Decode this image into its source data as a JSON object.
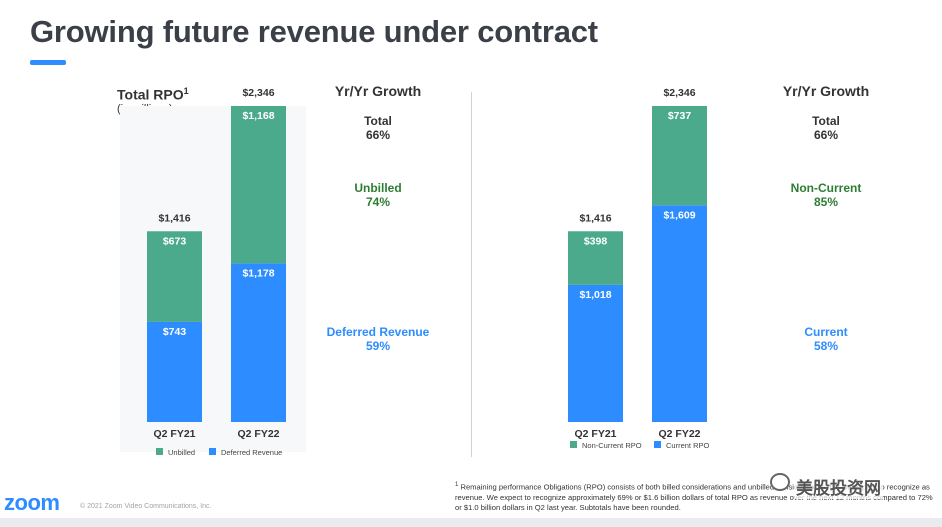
{
  "page": {
    "title": "Growing future revenue under contract",
    "rpo_title": "Total RPO",
    "rpo_sup": "1",
    "rpo_subtitle": "(in millions)",
    "logo": "zoom",
    "copyright": "© 2021 Zoom Video Communications, Inc.",
    "footnote_sup": "1",
    "footnote": "Remaining performance Obligations (RPO) consists of both billed considerations and unbilled considerations that we expect to recognize as revenue. We expect to recognize approximately 69% or $1.6 billion dollars of total RPO as revenue over the next 12 months compared to 72% or $1.0 billion dollars in Q2 last year. Subtotals have been rounded.",
    "watermark": "美股投资网"
  },
  "left_growth": {
    "header": "Yr/Yr Growth",
    "total_label": "Total",
    "total_value": "66%",
    "top_label": "Unbilled",
    "top_value": "74%",
    "bottom_label": "Deferred Revenue",
    "bottom_value": "59%"
  },
  "right_growth": {
    "header": "Yr/Yr Growth",
    "total_label": "Total",
    "total_value": "66%",
    "top_label": "Non-Current",
    "top_value": "85%",
    "bottom_label": "Current",
    "bottom_value": "58%"
  },
  "colors": {
    "green": "#4caa8c",
    "blue": "#2d8cff",
    "green_text": "#2e7d32",
    "blue_text": "#2d8cff"
  },
  "chart_data": [
    {
      "type": "bar",
      "stacked": true,
      "categories": [
        "Q2 FY21",
        "Q2 FY22"
      ],
      "series": [
        {
          "name": "Deferred Revenue",
          "values": [
            743,
            1178
          ],
          "labels": [
            "$743",
            "$1,178"
          ],
          "color": "#2d8cff"
        },
        {
          "name": "Unbilled",
          "values": [
            673,
            1168
          ],
          "labels": [
            "$673",
            "$1,168"
          ],
          "color": "#4caa8c"
        }
      ],
      "totals": [
        "$1,416",
        "$2,346"
      ],
      "legend": [
        "Unbilled",
        "Deferred Revenue"
      ]
    },
    {
      "type": "bar",
      "stacked": true,
      "categories": [
        "Q2 FY21",
        "Q2 FY22"
      ],
      "series": [
        {
          "name": "Current RPO",
          "values": [
            1018,
            1609
          ],
          "labels": [
            "$1,018",
            "$1,609"
          ],
          "color": "#2d8cff"
        },
        {
          "name": "Non-Current RPO",
          "values": [
            398,
            737
          ],
          "labels": [
            "$398",
            "$737"
          ],
          "color": "#4caa8c"
        }
      ],
      "totals": [
        "$1,416",
        "$2,346"
      ],
      "legend": [
        "Non-Current RPO",
        "Current RPO"
      ]
    }
  ]
}
